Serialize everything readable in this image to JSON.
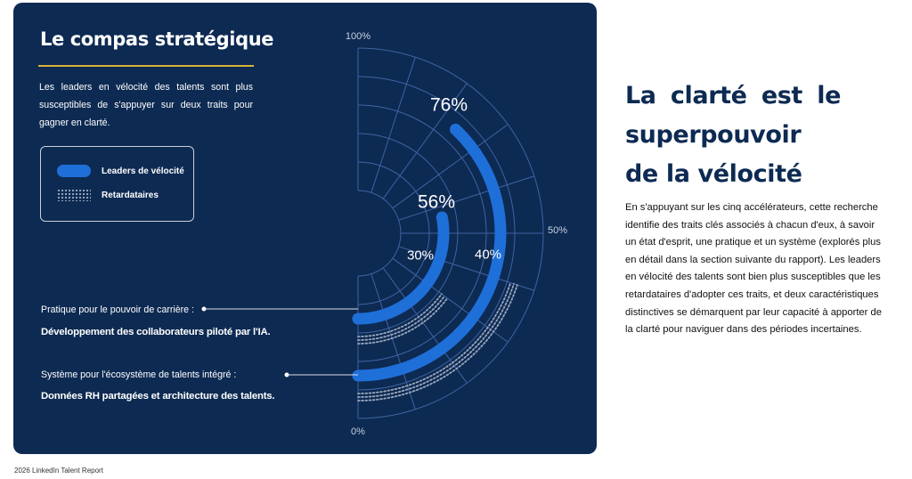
{
  "panel": {
    "title": "Le compas stratégique",
    "intro": "Les leaders en vélocité des talents sont plus susceptibles de s'appuyer sur deux traits pour gagner en clarté.",
    "accent_color": "#d8b33a",
    "background_color": "#0d2a52"
  },
  "legend": {
    "items": [
      {
        "label": "Leaders de vélocité",
        "style": "solid",
        "color": "#1f6fd9"
      },
      {
        "label": "Retardataires",
        "style": "dotted",
        "color": "#9aa7bc"
      }
    ]
  },
  "callouts": [
    {
      "label": "Pratique pour le pouvoir de carrière :",
      "value": "Développement des collaborateurs piloté par l'IA."
    },
    {
      "label": "Système pour l'écosystème de talents intégré :",
      "value": "Données RH partagées et architecture des talents."
    }
  ],
  "chart_data": {
    "type": "radial-bar",
    "axis": {
      "min": 0,
      "max": 100,
      "ticks": [
        "0%",
        "50%",
        "100%"
      ]
    },
    "categories": [
      "Développement des collaborateurs piloté par l'IA.",
      "Données RH partagées et architecture des talents."
    ],
    "series": [
      {
        "name": "Leaders de vélocité",
        "values": [
          56,
          76
        ],
        "labels": [
          "56%",
          "76%"
        ],
        "color": "#1f6fd9"
      },
      {
        "name": "Retardataires",
        "values": [
          30,
          40
        ],
        "labels": [
          "30%",
          "40%"
        ],
        "color": "#9aa7bc"
      }
    ]
  },
  "article": {
    "heading": "La clarté est le superpouvoir de la vélocité",
    "body": "En s'appuyant sur les cinq accélérateurs, cette recherche identifie des traits clés associés à chacun d'eux, à savoir un état d'esprit, une pratique et un système (explorés plus en détail dans la section suivante du rapport). Les leaders en vélocité des talents sont bien plus susceptibles que les retardataires d'adopter ces traits, et deux caractéristiques distinctives se démarquent par leur capacité à apporter de la clarté pour naviguer dans des périodes incertaines."
  },
  "footer": {
    "source": "2026 LinkedIn Talent Report"
  }
}
